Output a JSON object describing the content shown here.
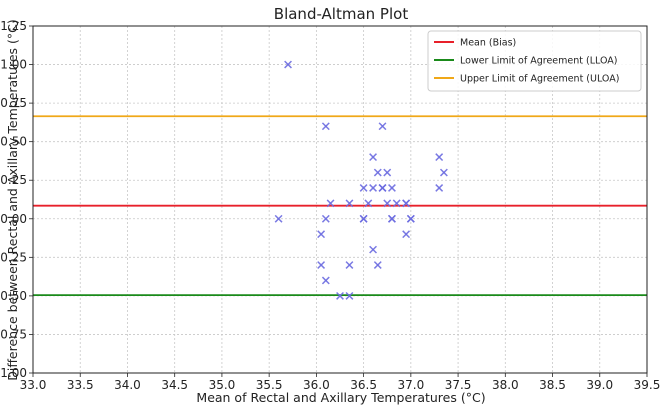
{
  "chart_data": {
    "type": "scatter",
    "title": "Bland-Altman Plot",
    "xlabel": "Mean of Rectal and Axillary Temperatures (°C)",
    "ylabel": "Difference between Rectal and Axillary Temperatures (°C)",
    "xlim": [
      33.0,
      39.5
    ],
    "ylim": [
      -1.0,
      1.25
    ],
    "xticks": [
      "33.0",
      "33.5",
      "34.0",
      "34.5",
      "35.0",
      "35.5",
      "36.0",
      "36.5",
      "37.0",
      "37.5",
      "38.0",
      "38.5",
      "39.0",
      "39.5"
    ],
    "yticks": [
      "1.25",
      "1.00",
      "0.75",
      "0.50",
      "0.25",
      "0.00",
      "−0.25",
      "−0.50",
      "−0.75",
      "−1.00"
    ],
    "grid": true,
    "legend_position": "top-right",
    "marker_color": "#6b6be0",
    "lines": [
      {
        "name": "Mean (Bias)",
        "value": 0.085,
        "color": "#e8202a"
      },
      {
        "name": "Lower Limit of Agreement (LLOA)",
        "value": -0.495,
        "color": "#1a8a1a"
      },
      {
        "name": "Upper Limit of Agreement (ULOA)",
        "value": 0.665,
        "color": "#f0a818"
      }
    ],
    "points": [
      {
        "x": 35.6,
        "y": 0.0
      },
      {
        "x": 35.7,
        "y": 1.0
      },
      {
        "x": 36.05,
        "y": -0.1
      },
      {
        "x": 36.05,
        "y": -0.3
      },
      {
        "x": 36.1,
        "y": 0.6
      },
      {
        "x": 36.1,
        "y": 0.0
      },
      {
        "x": 36.1,
        "y": -0.4
      },
      {
        "x": 36.15,
        "y": 0.1
      },
      {
        "x": 36.25,
        "y": -0.5
      },
      {
        "x": 36.35,
        "y": 0.1
      },
      {
        "x": 36.35,
        "y": -0.3
      },
      {
        "x": 36.35,
        "y": -0.5
      },
      {
        "x": 36.5,
        "y": 0.2
      },
      {
        "x": 36.5,
        "y": 0.0
      },
      {
        "x": 36.5,
        "y": 0.0
      },
      {
        "x": 36.55,
        "y": 0.1
      },
      {
        "x": 36.6,
        "y": 0.4
      },
      {
        "x": 36.6,
        "y": 0.2
      },
      {
        "x": 36.6,
        "y": -0.2
      },
      {
        "x": 36.65,
        "y": 0.3
      },
      {
        "x": 36.65,
        "y": -0.3
      },
      {
        "x": 36.7,
        "y": 0.6
      },
      {
        "x": 36.7,
        "y": 0.2
      },
      {
        "x": 36.7,
        "y": 0.2
      },
      {
        "x": 36.75,
        "y": 0.3
      },
      {
        "x": 36.75,
        "y": 0.1
      },
      {
        "x": 36.8,
        "y": 0.2
      },
      {
        "x": 36.8,
        "y": 0.0
      },
      {
        "x": 36.8,
        "y": 0.0
      },
      {
        "x": 36.85,
        "y": 0.1
      },
      {
        "x": 36.95,
        "y": 0.1
      },
      {
        "x": 36.95,
        "y": 0.1
      },
      {
        "x": 36.95,
        "y": -0.1
      },
      {
        "x": 37.0,
        "y": 0.0
      },
      {
        "x": 37.0,
        "y": 0.0
      },
      {
        "x": 37.3,
        "y": 0.4
      },
      {
        "x": 37.3,
        "y": 0.2
      },
      {
        "x": 37.35,
        "y": 0.3
      }
    ]
  }
}
